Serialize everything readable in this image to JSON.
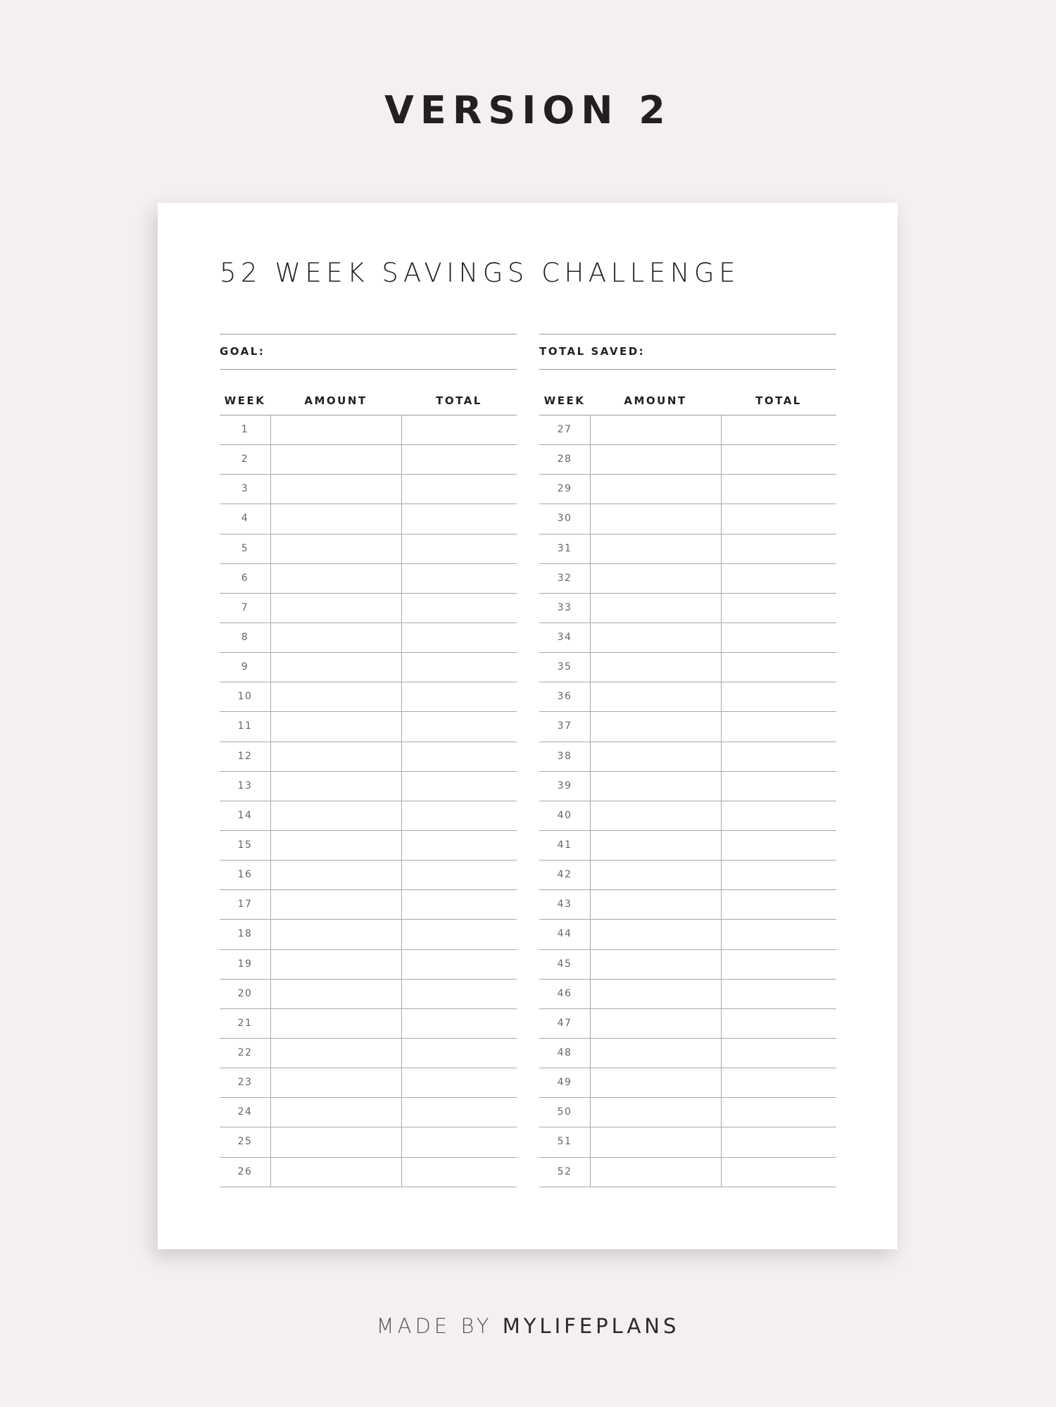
{
  "header": {
    "title": "VERSION 2"
  },
  "document": {
    "title": "52 WEEK SAVINGS CHALLENGE",
    "goal_label": "GOAL:",
    "total_saved_label": "TOTAL SAVED:",
    "columns": [
      "WEEK",
      "AMOUNT",
      "TOTAL"
    ],
    "left_weeks": [
      "1",
      "2",
      "3",
      "4",
      "5",
      "6",
      "7",
      "8",
      "9",
      "10",
      "11",
      "12",
      "13",
      "14",
      "15",
      "16",
      "17",
      "18",
      "19",
      "20",
      "21",
      "22",
      "23",
      "24",
      "25",
      "26"
    ],
    "right_weeks": [
      "27",
      "28",
      "29",
      "30",
      "31",
      "32",
      "33",
      "34",
      "35",
      "36",
      "37",
      "38",
      "39",
      "40",
      "41",
      "42",
      "43",
      "44",
      "45",
      "46",
      "47",
      "48",
      "49",
      "50",
      "51",
      "52"
    ]
  },
  "footer": {
    "made_by": "MADE BY",
    "brand": "MYLIFEPLANS"
  },
  "colors": {
    "background": "#f5eff1",
    "paper": "#ffffff",
    "text": "#231f20",
    "rule": "#9a9a9a"
  }
}
